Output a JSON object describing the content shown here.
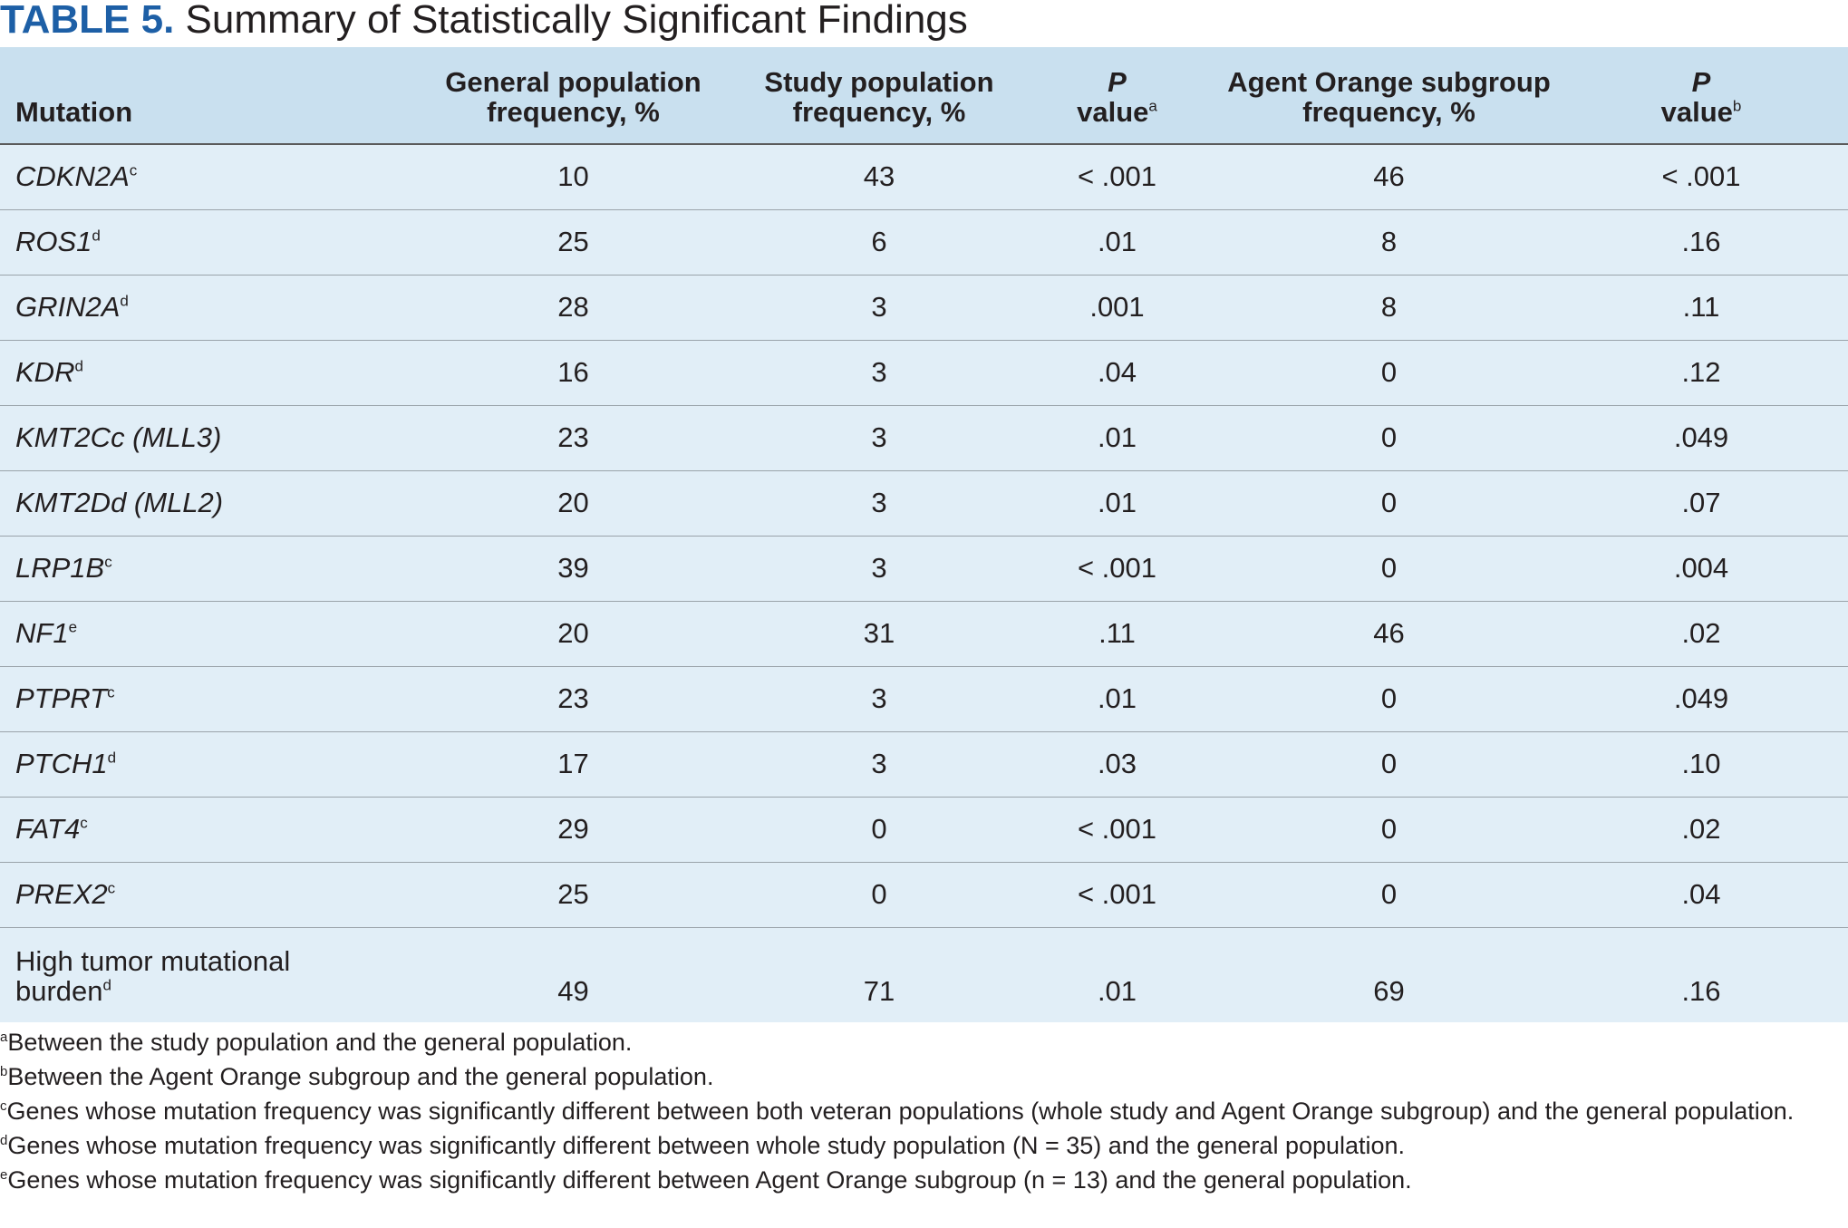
{
  "title": {
    "label": "TABLE 5.",
    "text": "Summary of Statistically Significant Findings"
  },
  "table": {
    "headers": [
      {
        "line1": "",
        "line2": "Mutation",
        "sup": ""
      },
      {
        "line1": "General population",
        "line2": "frequency, %",
        "sup": ""
      },
      {
        "line1": "Study population",
        "line2": "frequency, %",
        "sup": ""
      },
      {
        "line1": "P",
        "line2": "value",
        "sup": "a"
      },
      {
        "line1": "Agent Orange subgroup",
        "line2": "frequency, %",
        "sup": ""
      },
      {
        "line1": "P",
        "line2": "value",
        "sup": "b"
      }
    ],
    "rows": [
      {
        "gene": "CDKN2A",
        "sup": "c",
        "general": "10",
        "study": "43",
        "p_a": "< .001",
        "agent": "46",
        "p_b": "< .001"
      },
      {
        "gene": "ROS1",
        "sup": "d",
        "general": "25",
        "study": "6",
        "p_a": ".01",
        "agent": "8",
        "p_b": ".16"
      },
      {
        "gene": "GRIN2A",
        "sup": "d",
        "general": "28",
        "study": "3",
        "p_a": ".001",
        "agent": "8",
        "p_b": ".11"
      },
      {
        "gene": "KDR",
        "sup": "d",
        "general": "16",
        "study": "3",
        "p_a": ".04",
        "agent": "0",
        "p_b": ".12"
      },
      {
        "gene": "KMT2Cc (MLL3)",
        "sup": "",
        "general": "23",
        "study": "3",
        "p_a": ".01",
        "agent": "0",
        "p_b": ".049"
      },
      {
        "gene": "KMT2Dd (MLL2)",
        "sup": "",
        "general": "20",
        "study": "3",
        "p_a": ".01",
        "agent": "0",
        "p_b": ".07"
      },
      {
        "gene": "LRP1B",
        "sup": "c",
        "general": "39",
        "study": "3",
        "p_a": "< .001",
        "agent": "0",
        "p_b": ".004"
      },
      {
        "gene": "NF1",
        "sup": "e",
        "general": "20",
        "study": "31",
        "p_a": ".11",
        "agent": "46",
        "p_b": ".02"
      },
      {
        "gene": "PTPRT",
        "sup": "c",
        "general": "23",
        "study": "3",
        "p_a": ".01",
        "agent": "0",
        "p_b": ".049"
      },
      {
        "gene": "PTCH1",
        "sup": "d",
        "general": "17",
        "study": "3",
        "p_a": ".03",
        "agent": "0",
        "p_b": ".10"
      },
      {
        "gene": "FAT4",
        "sup": "c",
        "general": "29",
        "study": "0",
        "p_a": "< .001",
        "agent": "0",
        "p_b": ".02"
      },
      {
        "gene": "PREX2",
        "sup": "c",
        "general": "25",
        "study": "0",
        "p_a": "< .001",
        "agent": "0",
        "p_b": ".04"
      }
    ],
    "last_row": {
      "gene_line1": "High tumor mutational",
      "gene_line2": "burden",
      "sup": "d",
      "general": "49",
      "study": "71",
      "p_a": ".01",
      "agent": "69",
      "p_b": ".16"
    }
  },
  "footnotes": [
    {
      "mark": "a",
      "text": "Between the study population and the general population."
    },
    {
      "mark": "b",
      "text": "Between the Agent Orange subgroup and the general population."
    },
    {
      "mark": "c",
      "text": "Genes whose mutation frequency was significantly different between both veteran populations (whole study and Agent Orange subgroup) and the general population."
    },
    {
      "mark": "d",
      "text": "Genes whose mutation frequency was significantly different between whole study population (N = 35) and the general population."
    },
    {
      "mark": "e",
      "text": "Genes whose mutation frequency was significantly different between Agent Orange subgroup (n = 13) and the general population."
    }
  ],
  "colors": {
    "title_label": "#1d5fa6",
    "header_bg": "#c9e0ef",
    "row_bg": "#e1eef7",
    "text": "#231f20"
  }
}
